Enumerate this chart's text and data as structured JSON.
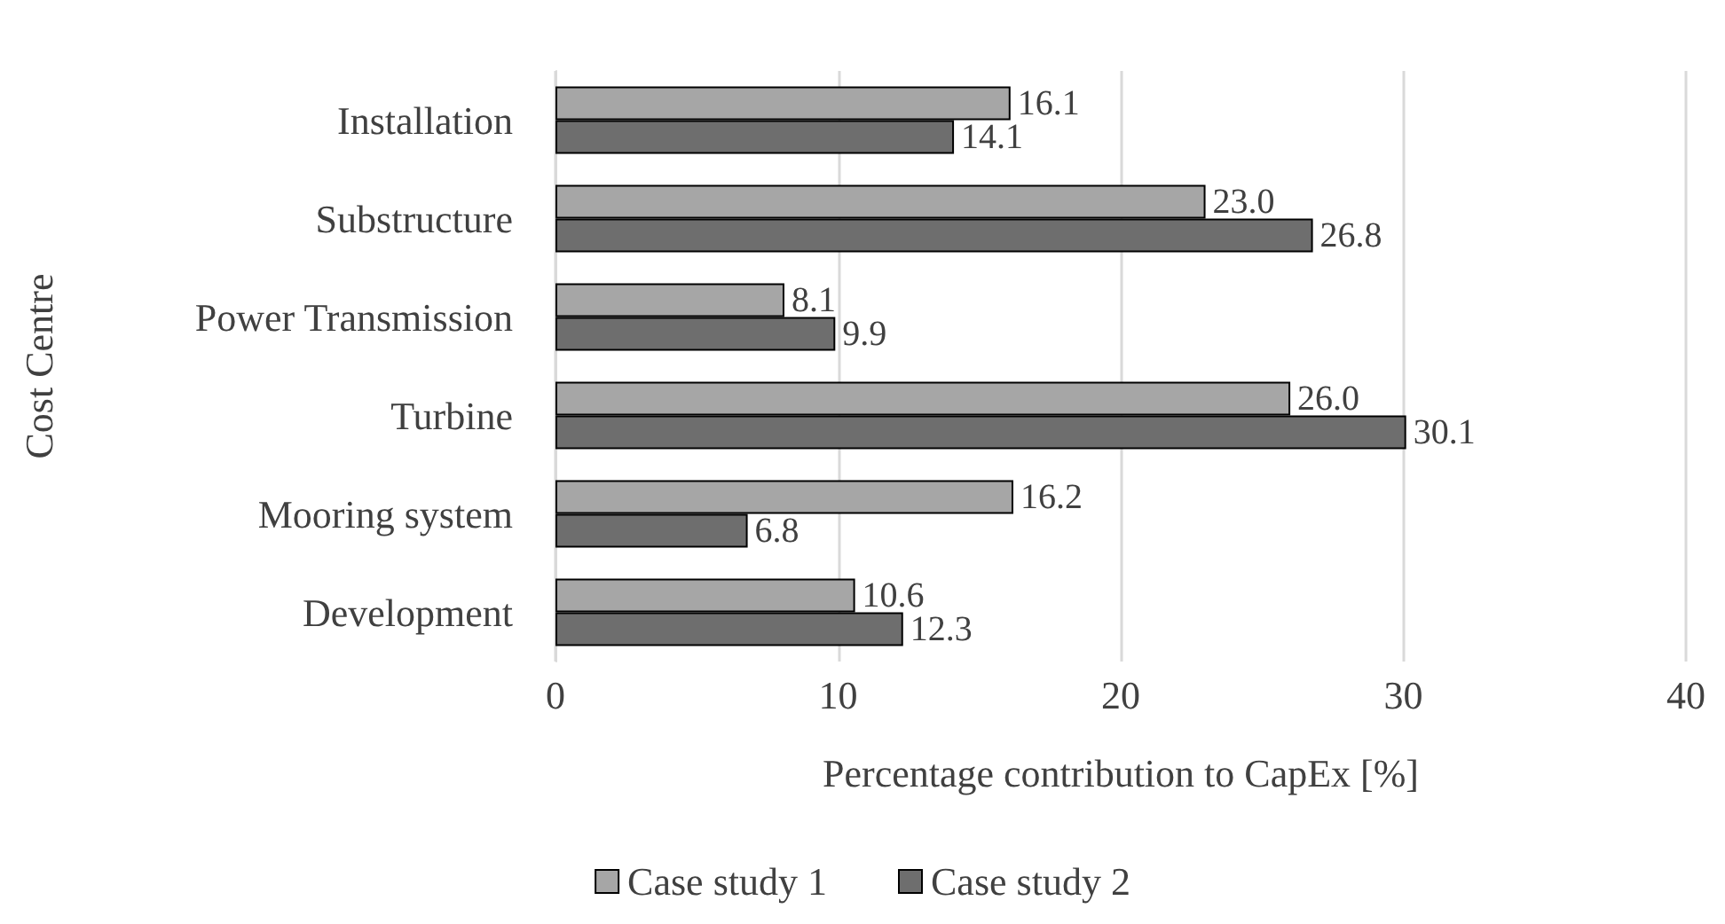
{
  "chart_data": {
    "type": "bar",
    "orientation": "horizontal",
    "xlabel": "Percentage contribution to CapEx [%]",
    "ylabel": "Cost Centre",
    "categories": [
      "Installation",
      "Substructure",
      "Power Transmission",
      "Turbine",
      "Mooring system",
      "Development"
    ],
    "series": [
      {
        "name": "Case study 1",
        "color": "#a6a6a6",
        "values": [
          16.1,
          23.0,
          8.1,
          26.0,
          16.2,
          10.6
        ],
        "value_labels": [
          "16.1",
          "23.0",
          "8.1",
          "26.0",
          "16.2",
          "10.6"
        ]
      },
      {
        "name": "Case study 2",
        "color": "#6e6e6e",
        "values": [
          14.1,
          26.8,
          9.9,
          30.1,
          6.8,
          12.3
        ],
        "value_labels": [
          "14.1",
          "26.8",
          "9.9",
          "30.1",
          "6.8",
          "12.3"
        ]
      }
    ],
    "xlim": [
      0,
      40
    ],
    "xticks": [
      0,
      10,
      20,
      30,
      40
    ],
    "grid": "x",
    "legend": "bottom"
  }
}
